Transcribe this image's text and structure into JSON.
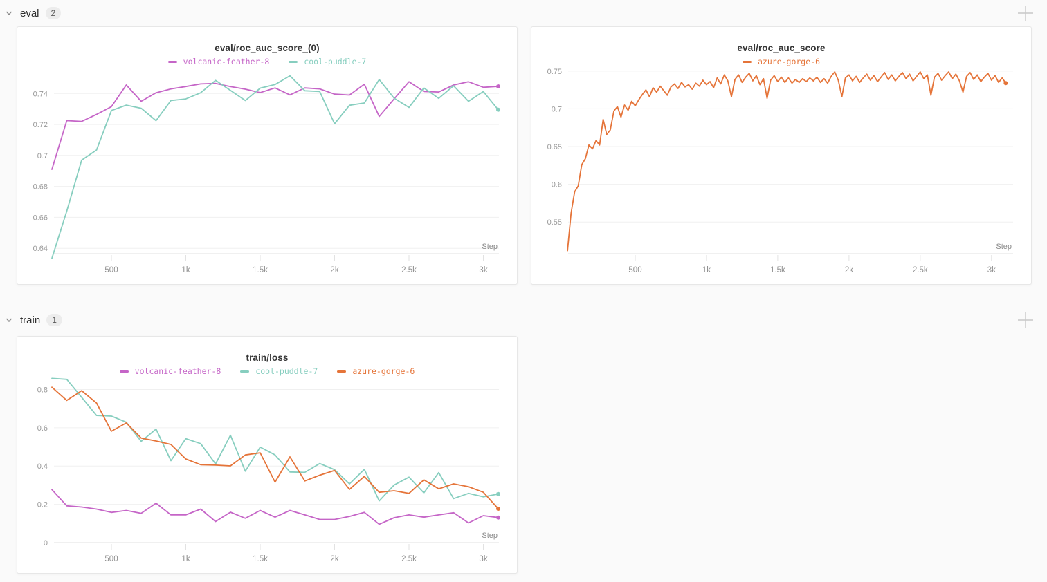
{
  "page": {
    "background": "#fafafa",
    "accent_divider": "#dcdcdc"
  },
  "icons": {
    "section_collapse": "chevron-down-icon",
    "add_panel": "plus-icon"
  },
  "sections": [
    {
      "label": "eval",
      "count": "2"
    },
    {
      "label": "train",
      "count": "1"
    }
  ],
  "chart_data": [
    {
      "type": "line",
      "title": "eval/roc_auc_score_(0)",
      "xlabel": "Step",
      "grid": true,
      "legend_position": "top-center",
      "xlim": [
        0,
        3200
      ],
      "ylim": [
        0.6365,
        0.758
      ],
      "x_ticks": [
        {
          "v": 500,
          "label": "500"
        },
        {
          "v": 1000,
          "label": "1k"
        },
        {
          "v": 1500,
          "label": "1.5k"
        },
        {
          "v": 2000,
          "label": "2k"
        },
        {
          "v": 2500,
          "label": "2.5k"
        },
        {
          "v": 3000,
          "label": "3k"
        }
      ],
      "y_ticks": [
        {
          "v": 0.74,
          "label": "0.74"
        },
        {
          "v": 0.72,
          "label": "0.72"
        },
        {
          "v": 0.7,
          "label": "0.7"
        },
        {
          "v": 0.68,
          "label": "0.68"
        },
        {
          "v": 0.66,
          "label": "0.66"
        },
        {
          "v": 0.64,
          "label": "0.64"
        }
      ],
      "series": [
        {
          "name": "volcanic-feather-8",
          "color": "#C565C7",
          "x": [
            100,
            200,
            300,
            400,
            500,
            600,
            700,
            800,
            900,
            1000,
            1100,
            1200,
            1300,
            1400,
            1500,
            1600,
            1700,
            1800,
            1900,
            2000,
            2100,
            2200,
            2300,
            2400,
            2500,
            2600,
            2700,
            2800,
            2900,
            3000,
            3100
          ],
          "y": [
            0.691,
            0.7225,
            0.722,
            0.7265,
            0.7315,
            0.7455,
            0.735,
            0.7405,
            0.743,
            0.7445,
            0.7462,
            0.7465,
            0.7445,
            0.7428,
            0.7406,
            0.7436,
            0.7391,
            0.7436,
            0.743,
            0.7396,
            0.739,
            0.746,
            0.7252,
            0.7365,
            0.7476,
            0.7413,
            0.741,
            0.7455,
            0.7476,
            0.744,
            0.7446
          ]
        },
        {
          "name": "cool-puddle-7",
          "color": "#87CEBF",
          "x": [
            100,
            200,
            300,
            400,
            500,
            600,
            700,
            800,
            900,
            1000,
            1100,
            1200,
            1300,
            1400,
            1500,
            1600,
            1700,
            1800,
            1900,
            2000,
            2100,
            2200,
            2300,
            2400,
            2500,
            2600,
            2700,
            2800,
            2900,
            3000,
            3100
          ],
          "y": [
            0.6335,
            0.664,
            0.697,
            0.7035,
            0.729,
            0.7325,
            0.7305,
            0.7225,
            0.7355,
            0.7365,
            0.7405,
            0.7485,
            0.742,
            0.7355,
            0.7435,
            0.7458,
            0.7515,
            0.7418,
            0.7413,
            0.7205,
            0.7324,
            0.7339,
            0.749,
            0.737,
            0.731,
            0.7436,
            0.7369,
            0.745,
            0.735,
            0.7413,
            0.7295
          ]
        }
      ]
    },
    {
      "type": "line",
      "title": "eval/roc_auc_score",
      "xlabel": "Step",
      "grid": true,
      "legend_position": "top-center",
      "xlim": [
        0,
        3200
      ],
      "ylim": [
        0.508,
        0.7572
      ],
      "x_ticks": [
        {
          "v": 500,
          "label": "500"
        },
        {
          "v": 1000,
          "label": "1k"
        },
        {
          "v": 1500,
          "label": "1.5k"
        },
        {
          "v": 2000,
          "label": "2k"
        },
        {
          "v": 2500,
          "label": "2.5k"
        },
        {
          "v": 3000,
          "label": "3k"
        }
      ],
      "y_ticks": [
        {
          "v": 0.75,
          "label": "0.75"
        },
        {
          "v": 0.7,
          "label": "0.7"
        },
        {
          "v": 0.65,
          "label": "0.65"
        },
        {
          "v": 0.6,
          "label": "0.6"
        },
        {
          "v": 0.55,
          "label": "0.55"
        }
      ],
      "series": [
        {
          "name": "azure-gorge-6",
          "color": "#E57439",
          "x": [
            25,
            50,
            75,
            100,
            125,
            150,
            175,
            200,
            225,
            250,
            275,
            300,
            325,
            350,
            375,
            400,
            425,
            450,
            475,
            500,
            525,
            550,
            575,
            600,
            625,
            650,
            675,
            700,
            725,
            750,
            775,
            800,
            825,
            850,
            875,
            900,
            925,
            950,
            975,
            1000,
            1025,
            1050,
            1075,
            1100,
            1125,
            1150,
            1175,
            1200,
            1225,
            1250,
            1275,
            1300,
            1325,
            1350,
            1375,
            1400,
            1425,
            1450,
            1475,
            1500,
            1525,
            1550,
            1575,
            1600,
            1625,
            1650,
            1675,
            1700,
            1725,
            1750,
            1775,
            1800,
            1825,
            1850,
            1875,
            1900,
            1925,
            1950,
            1975,
            2000,
            2025,
            2050,
            2075,
            2100,
            2125,
            2150,
            2175,
            2200,
            2225,
            2250,
            2275,
            2300,
            2325,
            2350,
            2375,
            2400,
            2425,
            2450,
            2475,
            2500,
            2525,
            2550,
            2575,
            2600,
            2625,
            2650,
            2675,
            2700,
            2725,
            2750,
            2775,
            2800,
            2825,
            2850,
            2875,
            2900,
            2925,
            2950,
            2975,
            3000,
            3025,
            3050,
            3075,
            3100
          ],
          "y": [
            0.512,
            0.562,
            0.59,
            0.598,
            0.626,
            0.634,
            0.652,
            0.647,
            0.658,
            0.652,
            0.686,
            0.666,
            0.672,
            0.697,
            0.703,
            0.689,
            0.705,
            0.698,
            0.71,
            0.704,
            0.712,
            0.719,
            0.725,
            0.716,
            0.728,
            0.722,
            0.73,
            0.724,
            0.718,
            0.729,
            0.733,
            0.727,
            0.735,
            0.729,
            0.732,
            0.726,
            0.734,
            0.73,
            0.738,
            0.732,
            0.736,
            0.728,
            0.741,
            0.733,
            0.745,
            0.737,
            0.716,
            0.739,
            0.745,
            0.735,
            0.742,
            0.747,
            0.737,
            0.744,
            0.732,
            0.74,
            0.714,
            0.738,
            0.744,
            0.736,
            0.742,
            0.735,
            0.741,
            0.734,
            0.739,
            0.735,
            0.74,
            0.736,
            0.741,
            0.737,
            0.742,
            0.735,
            0.74,
            0.734,
            0.743,
            0.749,
            0.738,
            0.716,
            0.741,
            0.745,
            0.737,
            0.743,
            0.735,
            0.741,
            0.746,
            0.738,
            0.744,
            0.736,
            0.742,
            0.748,
            0.739,
            0.745,
            0.737,
            0.743,
            0.748,
            0.74,
            0.746,
            0.737,
            0.743,
            0.749,
            0.74,
            0.745,
            0.718,
            0.742,
            0.747,
            0.738,
            0.744,
            0.749,
            0.74,
            0.746,
            0.737,
            0.722,
            0.743,
            0.748,
            0.739,
            0.745,
            0.736,
            0.742,
            0.747,
            0.738,
            0.744,
            0.735,
            0.741,
            0.734
          ]
        }
      ]
    },
    {
      "type": "line",
      "title": "train/loss",
      "xlabel": "Step",
      "grid": true,
      "legend_position": "top-center",
      "xlim": [
        0,
        3200
      ],
      "ylim": [
        0,
        0.874
      ],
      "x_ticks": [
        {
          "v": 500,
          "label": "500"
        },
        {
          "v": 1000,
          "label": "1k"
        },
        {
          "v": 1500,
          "label": "1.5k"
        },
        {
          "v": 2000,
          "label": "2k"
        },
        {
          "v": 2500,
          "label": "2.5k"
        },
        {
          "v": 3000,
          "label": "3k"
        }
      ],
      "y_ticks": [
        {
          "v": 0.8,
          "label": "0.8"
        },
        {
          "v": 0.6,
          "label": "0.6"
        },
        {
          "v": 0.4,
          "label": "0.4"
        },
        {
          "v": 0.2,
          "label": "0.2"
        },
        {
          "v": 0,
          "label": "0"
        }
      ],
      "series": [
        {
          "name": "volcanic-feather-8",
          "color": "#C565C7",
          "x": [
            100,
            200,
            300,
            400,
            500,
            600,
            700,
            800,
            900,
            1000,
            1100,
            1200,
            1300,
            1400,
            1500,
            1600,
            1700,
            1800,
            1900,
            2000,
            2100,
            2200,
            2300,
            2400,
            2500,
            2600,
            2700,
            2800,
            2900,
            3000,
            3100
          ],
          "y": [
            0.277,
            0.192,
            0.186,
            0.175,
            0.158,
            0.168,
            0.153,
            0.206,
            0.145,
            0.145,
            0.175,
            0.11,
            0.159,
            0.127,
            0.168,
            0.133,
            0.168,
            0.145,
            0.121,
            0.121,
            0.137,
            0.158,
            0.096,
            0.13,
            0.145,
            0.133,
            0.145,
            0.156,
            0.103,
            0.141,
            0.131
          ]
        },
        {
          "name": "cool-puddle-7",
          "color": "#87CEBF",
          "x": [
            100,
            200,
            300,
            400,
            500,
            600,
            700,
            800,
            900,
            1000,
            1100,
            1200,
            1300,
            1400,
            1500,
            1600,
            1700,
            1800,
            1900,
            2000,
            2100,
            2200,
            2300,
            2400,
            2500,
            2600,
            2700,
            2800,
            2900,
            3000,
            3100
          ],
          "y": [
            0.858,
            0.853,
            0.759,
            0.664,
            0.661,
            0.629,
            0.529,
            0.593,
            0.428,
            0.543,
            0.517,
            0.411,
            0.561,
            0.373,
            0.499,
            0.458,
            0.369,
            0.367,
            0.413,
            0.381,
            0.307,
            0.383,
            0.218,
            0.301,
            0.342,
            0.26,
            0.366,
            0.23,
            0.257,
            0.239,
            0.254
          ]
        },
        {
          "name": "azure-gorge-6",
          "color": "#E57439",
          "x": [
            100,
            200,
            300,
            400,
            500,
            600,
            700,
            800,
            900,
            1000,
            1100,
            1200,
            1300,
            1400,
            1500,
            1600,
            1700,
            1800,
            1900,
            2000,
            2100,
            2200,
            2300,
            2400,
            2500,
            2600,
            2700,
            2800,
            2900,
            3000,
            3100
          ],
          "y": [
            0.812,
            0.743,
            0.794,
            0.729,
            0.582,
            0.625,
            0.546,
            0.531,
            0.513,
            0.437,
            0.407,
            0.405,
            0.401,
            0.458,
            0.469,
            0.316,
            0.448,
            0.322,
            0.352,
            0.377,
            0.278,
            0.346,
            0.263,
            0.271,
            0.257,
            0.328,
            0.281,
            0.307,
            0.292,
            0.263,
            0.177
          ]
        }
      ]
    }
  ]
}
